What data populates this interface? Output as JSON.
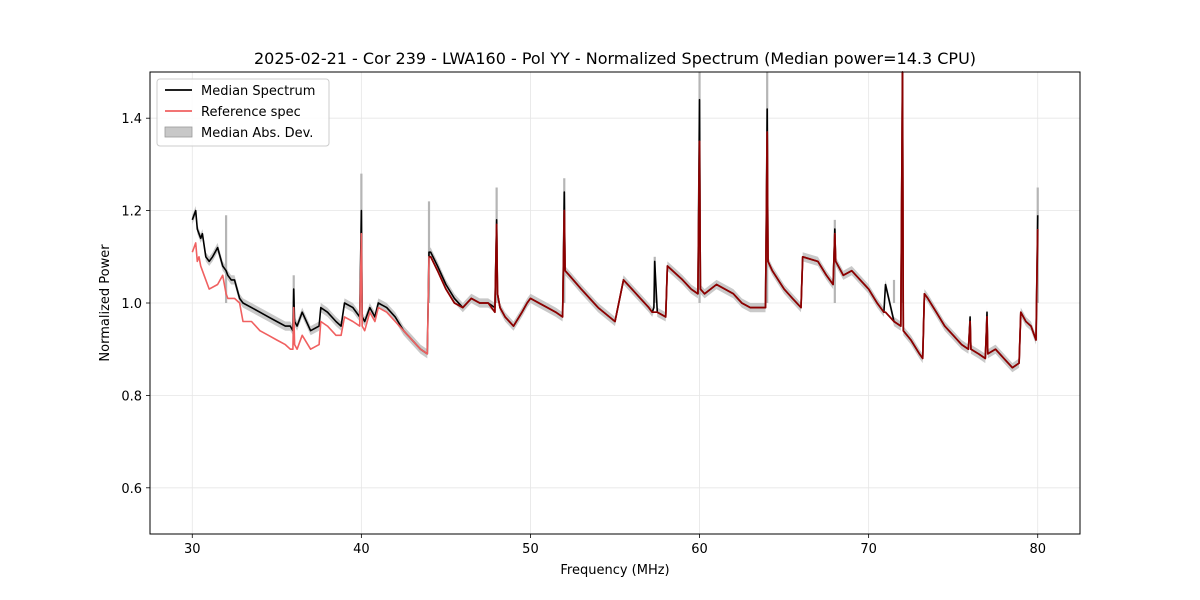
{
  "chart_data": {
    "type": "line",
    "title": "2025-02-21 - Cor 239 - LWA160 - Pol YY - Normalized Spectrum (Median power=14.3 CPU)",
    "xlabel": "Frequency (MHz)",
    "ylabel": "Normalized Power",
    "xlim": [
      27.5,
      82.5
    ],
    "ylim": [
      0.5,
      1.5
    ],
    "xticks": [
      30,
      40,
      50,
      60,
      70,
      80
    ],
    "yticks": [
      0.6,
      0.8,
      1.0,
      1.2,
      1.4
    ],
    "xtick_labels": [
      "30",
      "40",
      "50",
      "60",
      "70",
      "80"
    ],
    "ytick_labels": [
      "0.6",
      "0.8",
      "1.0",
      "1.2",
      "1.4"
    ],
    "grid": true,
    "legend_position": "top-left",
    "colors": {
      "median": "#000000",
      "reference": "#f06060",
      "mad": "#bbbbbb",
      "overlap": "#8b0000"
    },
    "series": [
      {
        "name": "Median Spectrum",
        "x": [
          30.0,
          30.1,
          30.2,
          30.3,
          30.4,
          30.5,
          30.6,
          30.8,
          31.0,
          31.2,
          31.5,
          31.8,
          32.0,
          32.1,
          32.3,
          32.5,
          32.8,
          33.0,
          33.5,
          34.0,
          34.5,
          35.0,
          35.5,
          35.8,
          35.95,
          36.0,
          36.05,
          36.2,
          36.5,
          37.0,
          37.5,
          37.6,
          38.0,
          38.5,
          38.8,
          39.0,
          39.5,
          39.9,
          40.0,
          40.05,
          40.2,
          40.5,
          40.8,
          41.0,
          41.5,
          42.0,
          42.5,
          43.0,
          43.5,
          43.9,
          44.0,
          44.1,
          44.5,
          45.0,
          45.5,
          46.0,
          46.5,
          47.0,
          47.5,
          47.9,
          48.0,
          48.05,
          48.2,
          48.5,
          49.0,
          49.5,
          49.8,
          50.0,
          50.5,
          51.0,
          51.5,
          51.9,
          52.0,
          52.05,
          52.3,
          53.0,
          54.0,
          55.0,
          55.5,
          56.0,
          56.5,
          57.0,
          57.2,
          57.3,
          57.35,
          57.5,
          58.0,
          58.1,
          59.0,
          59.5,
          59.9,
          60.0,
          60.05,
          60.3,
          61.0,
          61.5,
          62.0,
          62.5,
          63.0,
          63.5,
          63.9,
          64.0,
          64.05,
          64.3,
          65.0,
          65.5,
          66.0,
          66.1,
          67.0,
          67.5,
          67.9,
          68.0,
          68.05,
          68.5,
          69.0,
          69.5,
          70.0,
          70.5,
          70.9,
          71.0,
          71.5,
          71.9,
          72.0,
          72.05,
          72.5,
          73.0,
          73.2,
          73.3,
          73.5,
          74.0,
          74.5,
          75.0,
          75.5,
          75.9,
          76.0,
          76.05,
          76.5,
          76.9,
          77.0,
          77.05,
          77.5,
          78.0,
          78.5,
          78.9,
          79.0,
          79.3,
          79.6,
          79.9,
          80.0
        ],
        "y": [
          1.18,
          1.19,
          1.2,
          1.16,
          1.15,
          1.14,
          1.15,
          1.1,
          1.09,
          1.1,
          1.12,
          1.08,
          1.07,
          1.06,
          1.05,
          1.05,
          1.01,
          1.0,
          0.99,
          0.98,
          0.97,
          0.96,
          0.95,
          0.95,
          0.94,
          1.03,
          0.96,
          0.95,
          0.98,
          0.94,
          0.95,
          0.99,
          0.98,
          0.96,
          0.95,
          1.0,
          0.99,
          0.97,
          1.2,
          0.97,
          0.96,
          0.99,
          0.97,
          1.0,
          0.99,
          0.97,
          0.94,
          0.92,
          0.9,
          0.89,
          1.11,
          1.11,
          1.08,
          1.04,
          1.01,
          0.99,
          1.01,
          1.0,
          1.0,
          0.99,
          1.18,
          1.02,
          0.99,
          0.97,
          0.95,
          0.98,
          1.0,
          1.01,
          1.0,
          0.99,
          0.98,
          0.97,
          1.24,
          1.07,
          1.06,
          1.03,
          0.99,
          0.96,
          1.05,
          1.03,
          1.01,
          0.99,
          0.98,
          0.99,
          1.09,
          0.98,
          0.97,
          1.08,
          1.05,
          1.03,
          1.02,
          1.44,
          1.03,
          1.02,
          1.04,
          1.03,
          1.02,
          1.0,
          0.99,
          0.99,
          0.99,
          1.42,
          1.09,
          1.07,
          1.03,
          1.01,
          0.99,
          1.1,
          1.09,
          1.06,
          1.04,
          1.16,
          1.09,
          1.06,
          1.07,
          1.05,
          1.03,
          1.0,
          0.98,
          1.04,
          0.96,
          0.95,
          1.5,
          0.94,
          0.92,
          0.89,
          0.88,
          1.02,
          1.01,
          0.98,
          0.95,
          0.93,
          0.91,
          0.9,
          0.97,
          0.9,
          0.89,
          0.88,
          0.98,
          0.89,
          0.9,
          0.88,
          0.86,
          0.87,
          0.98,
          0.96,
          0.95,
          0.92,
          1.19
        ]
      },
      {
        "name": "Reference spec",
        "x": [
          30.0,
          30.1,
          30.2,
          30.3,
          30.4,
          30.5,
          30.7,
          31.0,
          31.5,
          31.8,
          32.0,
          32.1,
          32.5,
          32.8,
          33.0,
          33.5,
          34.0,
          34.5,
          35.0,
          35.5,
          35.8,
          35.95,
          36.0,
          36.05,
          36.2,
          36.5,
          37.0,
          37.5,
          37.6,
          38.0,
          38.5,
          38.8,
          39.0,
          39.5,
          39.9,
          40.0,
          40.05,
          40.2,
          40.5,
          40.8,
          41.0,
          41.5,
          42.0,
          42.5,
          43.0,
          43.5,
          43.9,
          44.0,
          44.1,
          44.5,
          45.0,
          45.5,
          46.0,
          46.5,
          47.0,
          47.5,
          47.9,
          48.0,
          48.05,
          48.2,
          48.5,
          49.0,
          49.5,
          49.8,
          50.0,
          50.5,
          51.0,
          51.5,
          51.9,
          52.0,
          52.05,
          52.3,
          53.0,
          54.0,
          55.0,
          55.5,
          56.0,
          56.5,
          57.0,
          57.2,
          57.35,
          57.5,
          58.0,
          58.1,
          59.0,
          59.5,
          59.9,
          60.0,
          60.05,
          60.3,
          61.0,
          61.5,
          62.0,
          62.5,
          63.0,
          63.5,
          63.9,
          64.0,
          64.05,
          64.3,
          65.0,
          65.5,
          66.0,
          66.1,
          67.0,
          67.5,
          67.9,
          68.0,
          68.05,
          68.5,
          69.0,
          69.5,
          70.0,
          70.5,
          70.9,
          71.0,
          71.5,
          71.9,
          72.0,
          72.05,
          72.5,
          73.0,
          73.2,
          73.3,
          73.5,
          74.0,
          74.5,
          75.0,
          75.5,
          75.9,
          76.0,
          76.05,
          76.5,
          76.9,
          77.0,
          77.05,
          77.5,
          78.0,
          78.5,
          78.9,
          79.0,
          79.3,
          79.6,
          79.9,
          80.0
        ],
        "y": [
          1.11,
          1.12,
          1.13,
          1.09,
          1.1,
          1.08,
          1.06,
          1.03,
          1.04,
          1.06,
          1.02,
          1.01,
          1.01,
          1.0,
          0.96,
          0.96,
          0.94,
          0.93,
          0.92,
          0.91,
          0.9,
          0.9,
          0.99,
          0.91,
          0.9,
          0.93,
          0.9,
          0.91,
          0.96,
          0.95,
          0.93,
          0.93,
          0.97,
          0.96,
          0.95,
          1.15,
          0.95,
          0.94,
          0.98,
          0.96,
          0.99,
          0.98,
          0.96,
          0.94,
          0.92,
          0.9,
          0.89,
          1.1,
          1.1,
          1.07,
          1.03,
          1.0,
          0.99,
          1.01,
          1.0,
          1.0,
          0.98,
          1.17,
          1.02,
          0.99,
          0.97,
          0.95,
          0.98,
          1.0,
          1.01,
          1.0,
          0.99,
          0.98,
          0.97,
          1.2,
          1.07,
          1.06,
          1.03,
          0.99,
          0.96,
          1.05,
          1.03,
          1.01,
          0.99,
          0.98,
          0.98,
          0.98,
          0.97,
          1.08,
          1.05,
          1.03,
          1.02,
          1.35,
          1.03,
          1.02,
          1.04,
          1.03,
          1.02,
          1.0,
          0.99,
          0.99,
          0.99,
          1.37,
          1.09,
          1.07,
          1.03,
          1.01,
          0.99,
          1.1,
          1.09,
          1.06,
          1.04,
          1.15,
          1.09,
          1.06,
          1.07,
          1.05,
          1.03,
          1.0,
          0.98,
          0.98,
          0.96,
          0.95,
          1.5,
          0.94,
          0.92,
          0.89,
          0.88,
          1.02,
          1.01,
          0.98,
          0.95,
          0.93,
          0.91,
          0.9,
          0.96,
          0.9,
          0.89,
          0.88,
          0.97,
          0.89,
          0.9,
          0.88,
          0.86,
          0.87,
          0.98,
          0.96,
          0.95,
          0.92,
          1.16
        ]
      },
      {
        "name": "Median Abs. Dev.",
        "band_halfwidth": 0.01,
        "spike_tops": [
          {
            "x": 32.0,
            "y": 1.19
          },
          {
            "x": 36.0,
            "y": 1.06
          },
          {
            "x": 40.0,
            "y": 1.28
          },
          {
            "x": 44.0,
            "y": 1.22
          },
          {
            "x": 48.0,
            "y": 1.25
          },
          {
            "x": 52.0,
            "y": 1.27
          },
          {
            "x": 57.35,
            "y": 1.1
          },
          {
            "x": 60.0,
            "y": 1.5
          },
          {
            "x": 64.0,
            "y": 1.5
          },
          {
            "x": 68.0,
            "y": 1.18
          },
          {
            "x": 71.5,
            "y": 1.05
          },
          {
            "x": 72.0,
            "y": 1.5
          },
          {
            "x": 80.0,
            "y": 1.25
          }
        ]
      }
    ]
  }
}
